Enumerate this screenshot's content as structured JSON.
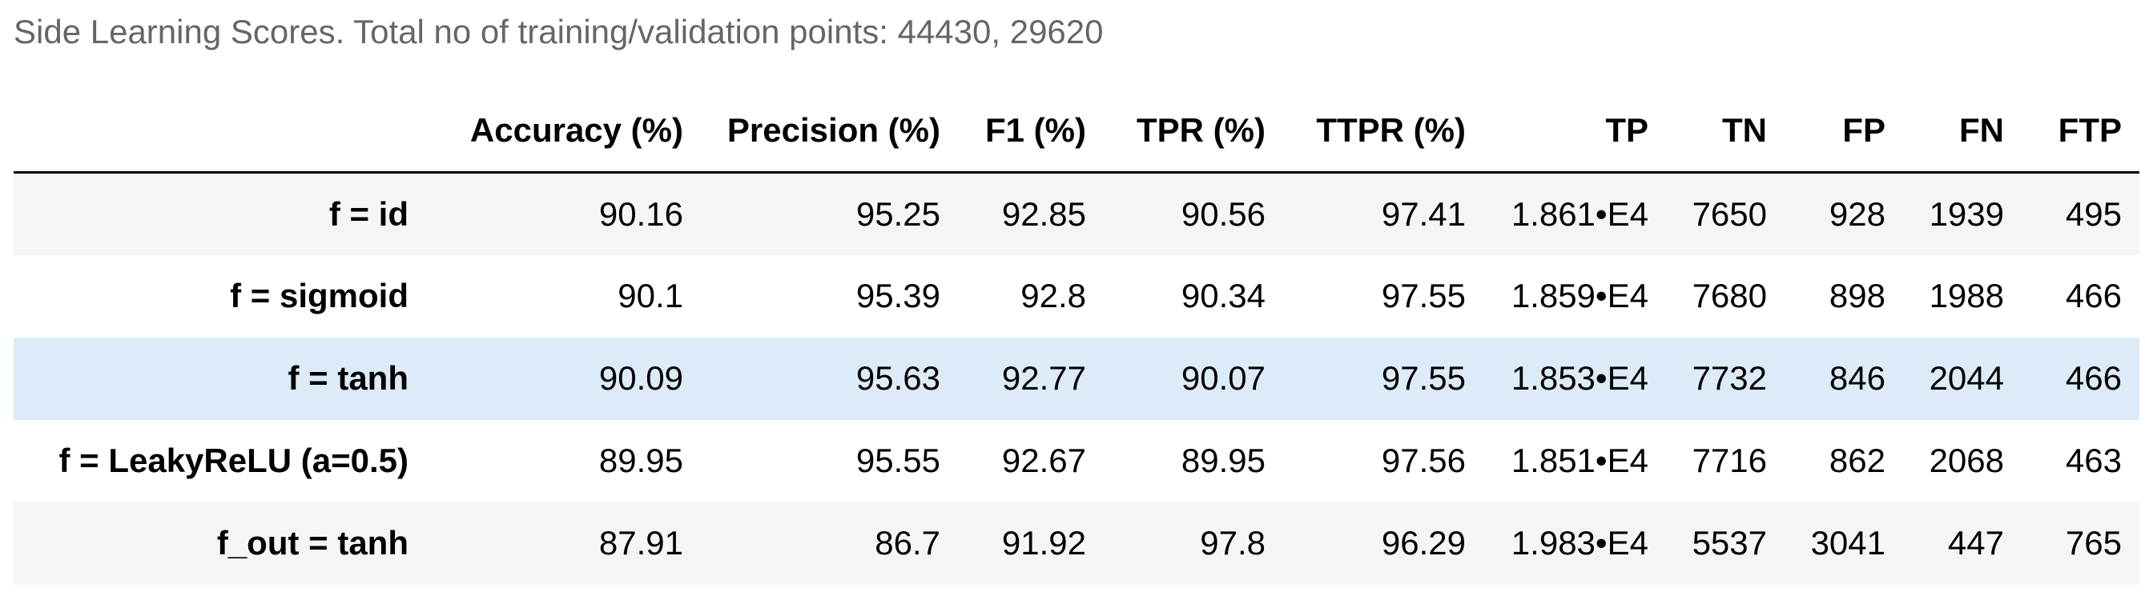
{
  "caption": "Side Learning Scores. Total no of training/validation points: 44430, 29620",
  "colors": {
    "caption_text": "#666666",
    "row_stripe": "#f5f5f5",
    "row_highlight": "#ddebf8",
    "header_rule": "#000000"
  },
  "table": {
    "index_header": "",
    "columns": [
      "Accuracy (%)",
      "Precision (%)",
      "F1 (%)",
      "TPR (%)",
      "TTPR (%)",
      "TP",
      "TN",
      "FP",
      "FN",
      "FTP"
    ],
    "rows": [
      {
        "label": "f = id",
        "cells": [
          "90.16",
          "95.25",
          "92.85",
          "90.56",
          "97.41",
          "1.861•E4",
          "7650",
          "928",
          "1939",
          "495"
        ]
      },
      {
        "label": "f = sigmoid",
        "cells": [
          "90.1",
          "95.39",
          "92.8",
          "90.34",
          "97.55",
          "1.859•E4",
          "7680",
          "898",
          "1988",
          "466"
        ]
      },
      {
        "label": "f = tanh",
        "cells": [
          "90.09",
          "95.63",
          "92.77",
          "90.07",
          "97.55",
          "1.853•E4",
          "7732",
          "846",
          "2044",
          "466"
        ]
      },
      {
        "label": "f = LeakyReLU (a=0.5)",
        "cells": [
          "89.95",
          "95.55",
          "92.67",
          "89.95",
          "97.56",
          "1.851•E4",
          "7716",
          "862",
          "2068",
          "463"
        ]
      },
      {
        "label": "f_out = tanh",
        "cells": [
          "87.91",
          "86.7",
          "91.92",
          "97.8",
          "96.29",
          "1.983•E4",
          "5537",
          "3041",
          "447",
          "765"
        ]
      }
    ]
  }
}
